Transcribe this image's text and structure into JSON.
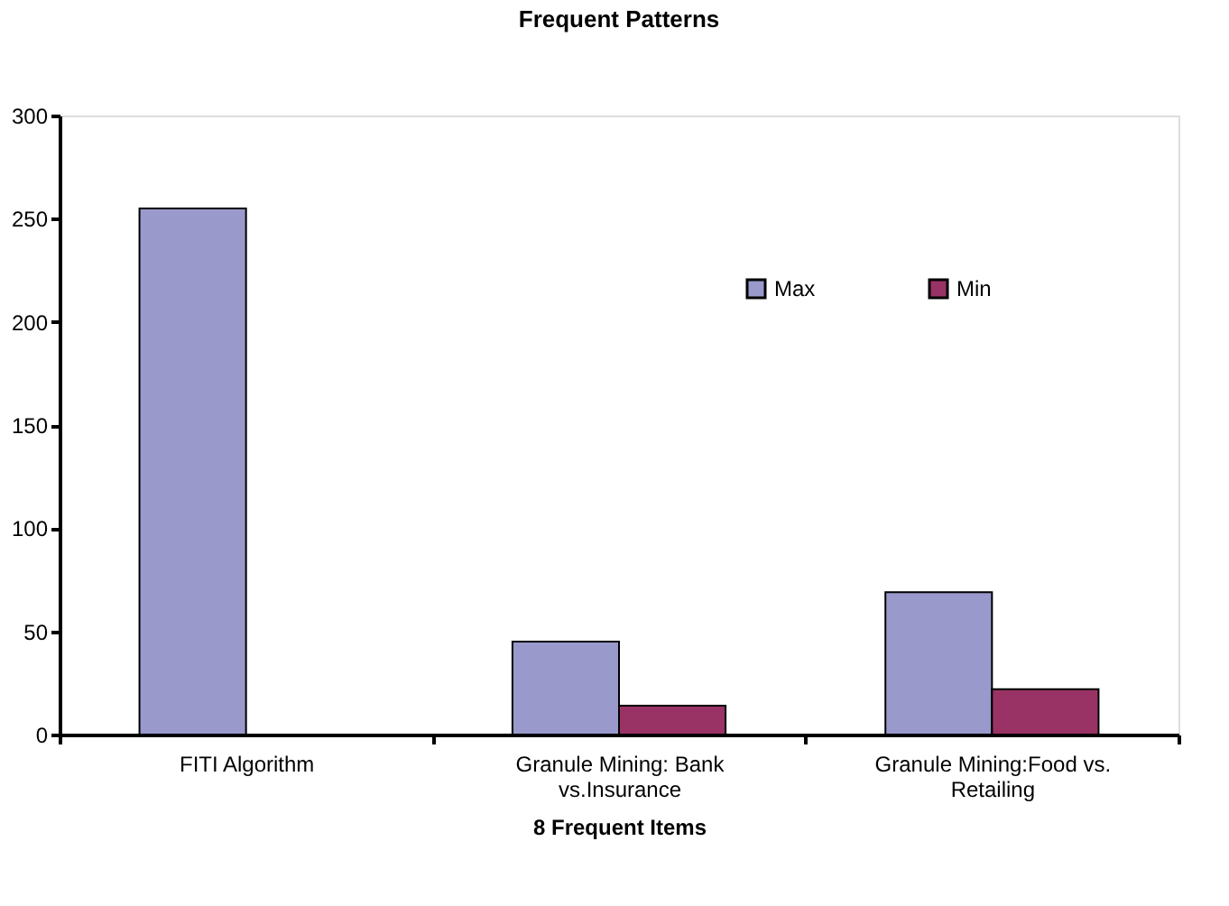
{
  "chart_data": {
    "type": "bar",
    "title": "Frequent Patterns",
    "xlabel": "8 Frequent Items",
    "categories": [
      "FITI Algorithm",
      "Granule Mining: Bank vs.Insurance",
      "Granule Mining:Food vs. Retailing"
    ],
    "series": [
      {
        "name": "Max",
        "color": "#9999cc",
        "values": [
          255,
          45,
          69
        ]
      },
      {
        "name": "Min",
        "color": "#993366",
        "values": [
          null,
          14,
          22
        ]
      }
    ],
    "ylim": [
      0,
      300
    ],
    "yticks": [
      0,
      50,
      100,
      150,
      200,
      250,
      300
    ],
    "grid": false,
    "legend": "top right"
  }
}
